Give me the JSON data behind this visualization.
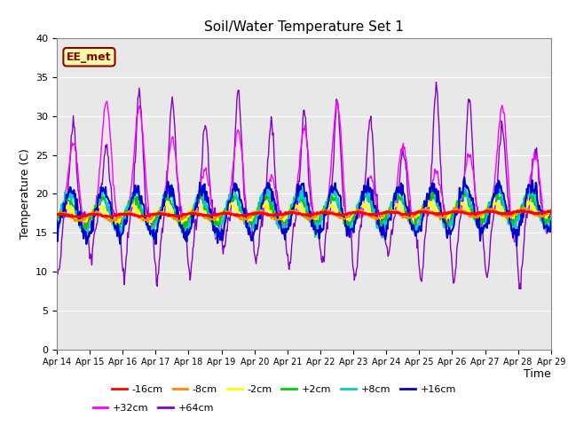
{
  "title": "Soil/Water Temperature Set 1",
  "xlabel": "Time",
  "ylabel": "Temperature (C)",
  "ylim": [
    0,
    40
  ],
  "yticks": [
    0,
    5,
    10,
    15,
    20,
    25,
    30,
    35,
    40
  ],
  "xtick_labels": [
    "Apr 14",
    "Apr 15",
    "Apr 16",
    "Apr 17",
    "Apr 18",
    "Apr 19",
    "Apr 20",
    "Apr 21",
    "Apr 22",
    "Apr 23",
    "Apr 24",
    "Apr 25",
    "Apr 26",
    "Apr 27",
    "Apr 28",
    "Apr 29"
  ],
  "annotation_text": "EE_met",
  "annotation_fg": "#8B0000",
  "annotation_bg": "#ffffaa",
  "background_color": "#e8e8e8",
  "series": [
    {
      "label": "-16cm",
      "color": "#ff0000",
      "lw": 2.0,
      "zorder": 5
    },
    {
      "label": "-8cm",
      "color": "#ff8800",
      "lw": 1.5,
      "zorder": 4
    },
    {
      "label": "-2cm",
      "color": "#ffff00",
      "lw": 1.5,
      "zorder": 3
    },
    {
      "label": "+2cm",
      "color": "#00cc00",
      "lw": 1.5,
      "zorder": 3
    },
    {
      "label": "+8cm",
      "color": "#00cccc",
      "lw": 1.5,
      "zorder": 3
    },
    {
      "label": "+16cm",
      "color": "#0000cc",
      "lw": 1.5,
      "zorder": 3
    },
    {
      "label": "+32cm",
      "color": "#ff00ff",
      "lw": 1.0,
      "zorder": 2
    },
    {
      "label": "+64cm",
      "color": "#8800cc",
      "lw": 1.0,
      "zorder": 1
    }
  ],
  "legend_ncol_row1": 6,
  "legend_ncol_row2": 2
}
